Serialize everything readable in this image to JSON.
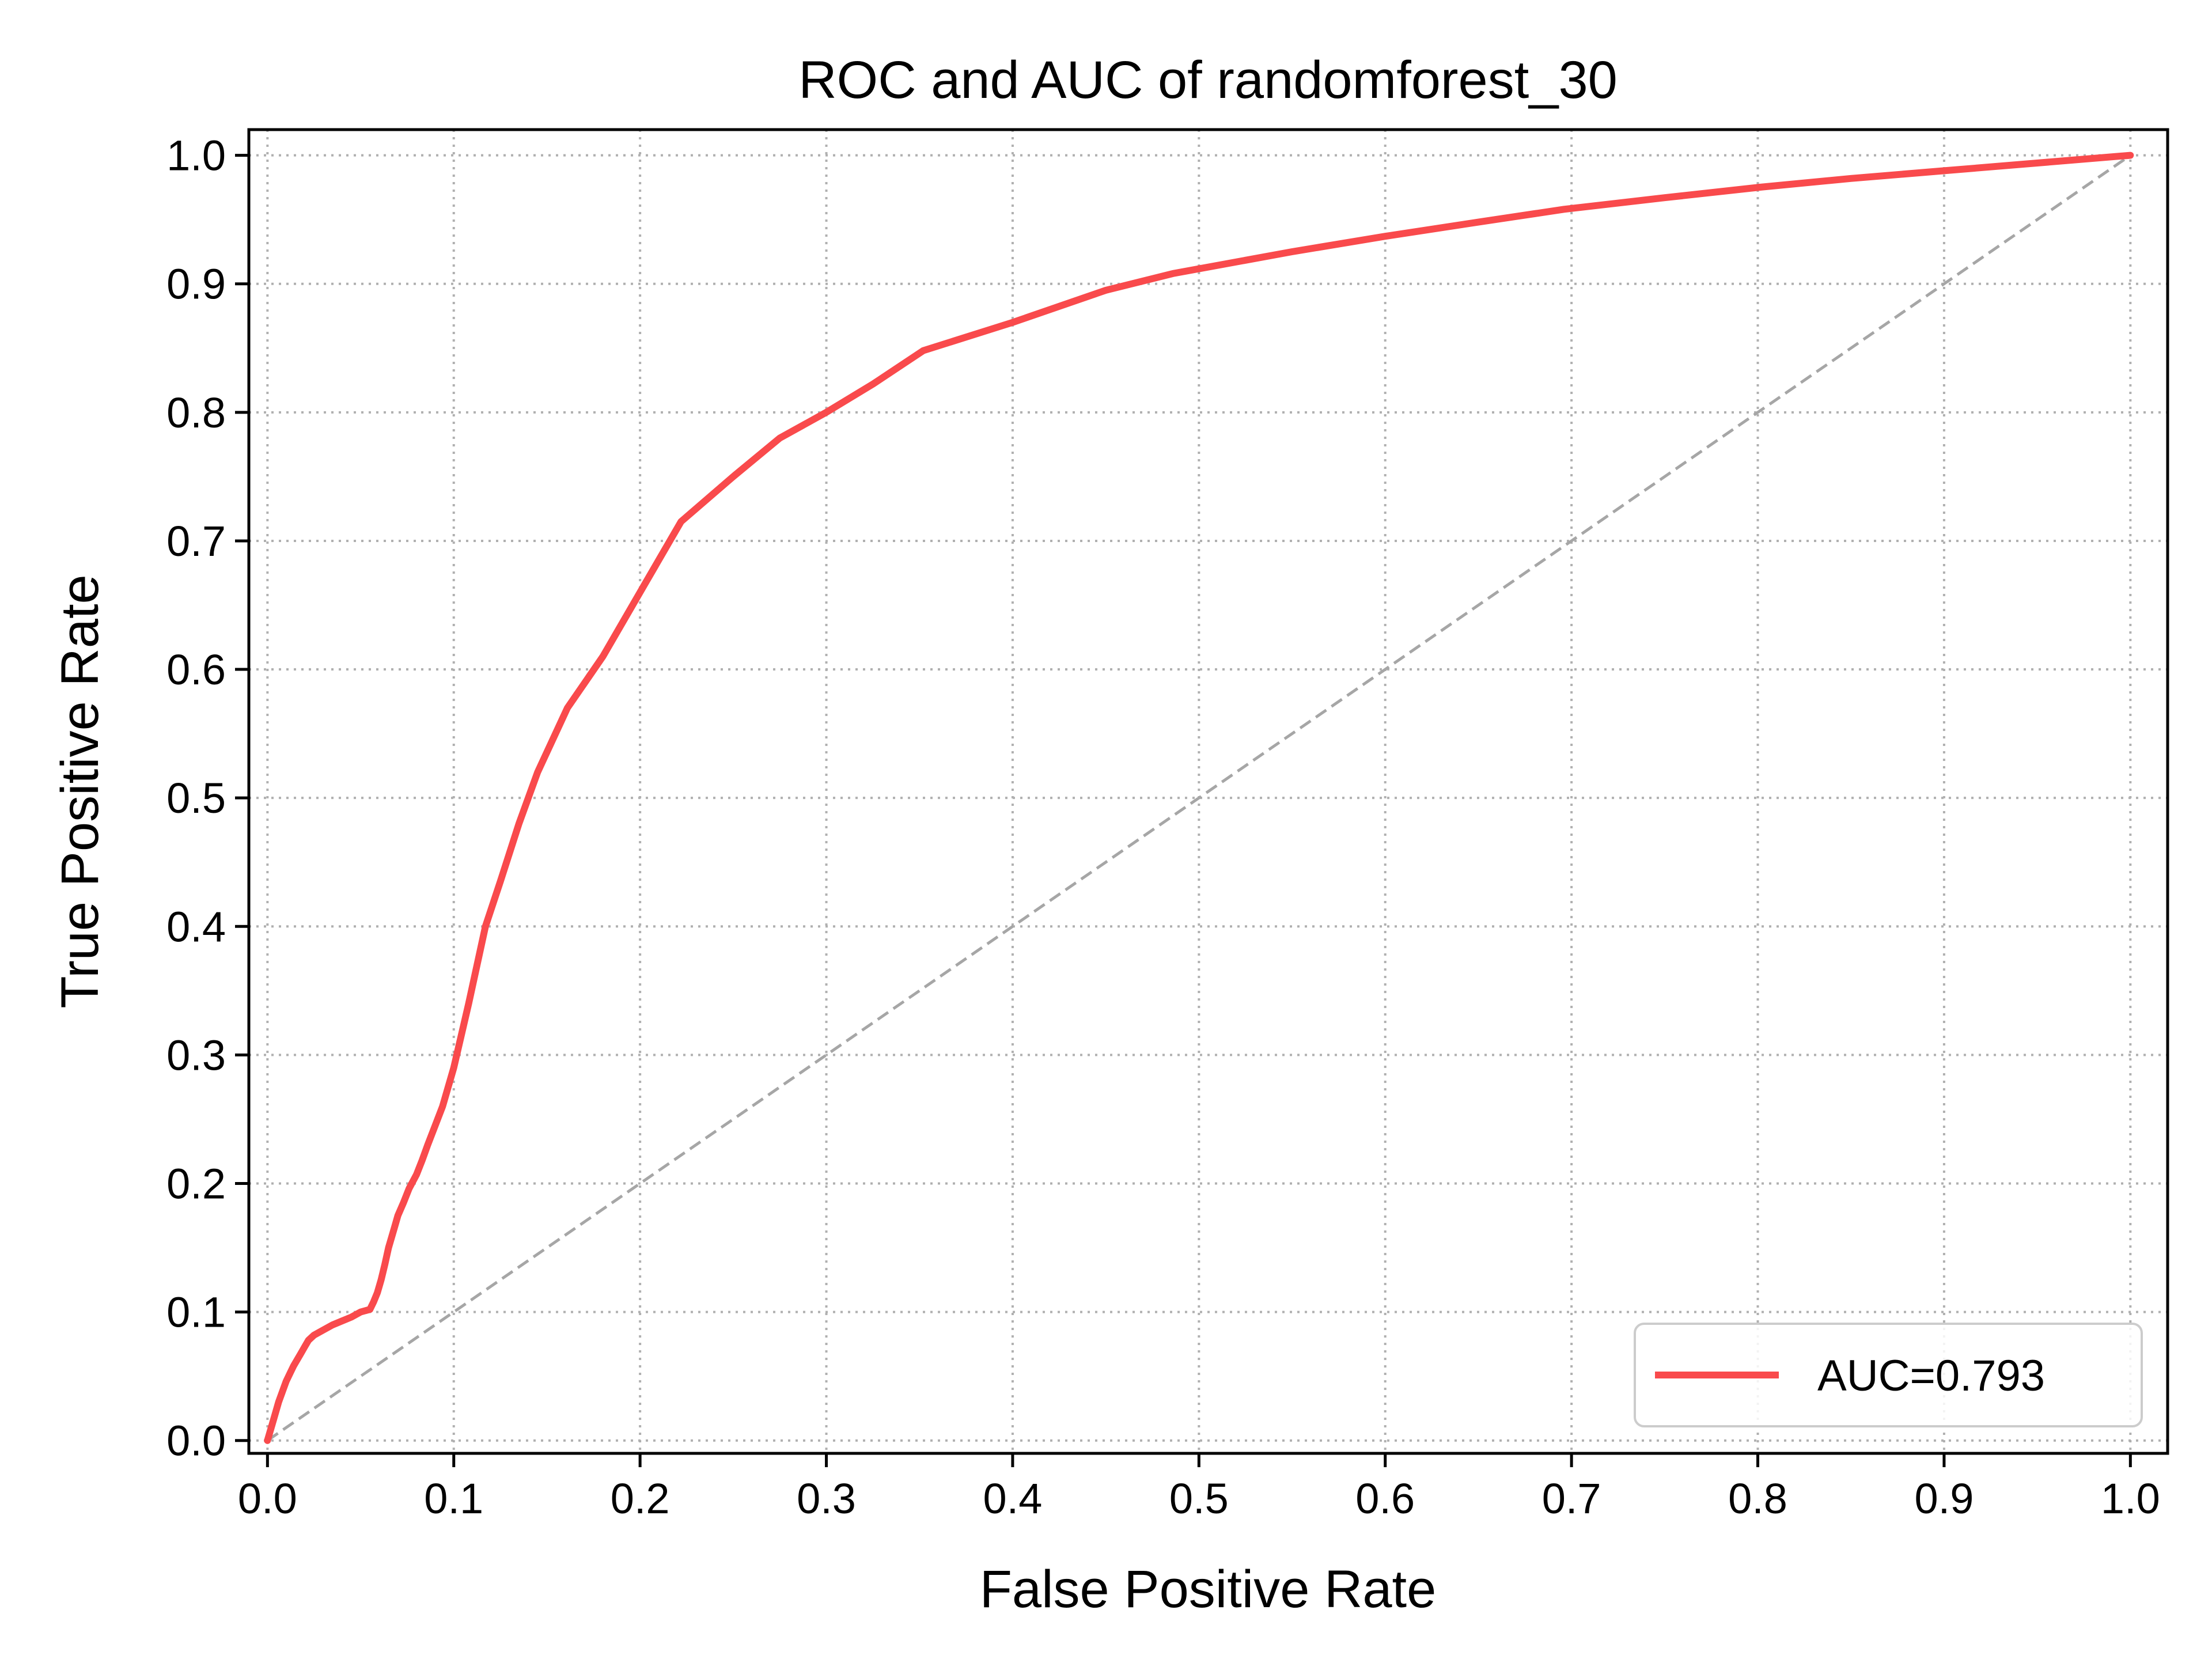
{
  "chart_data": {
    "type": "line",
    "title": "ROC and AUC of randomforest_30",
    "xlabel": "False Positive Rate",
    "ylabel": "True Positive Rate",
    "xlim": [
      -0.01,
      1.02
    ],
    "ylim": [
      -0.01,
      1.02
    ],
    "xticks": [
      "0.0",
      "0.1",
      "0.2",
      "0.3",
      "0.4",
      "0.5",
      "0.6",
      "0.7",
      "0.8",
      "0.9",
      "1.0"
    ],
    "yticks": [
      "0.0",
      "0.1",
      "0.2",
      "0.3",
      "0.4",
      "0.5",
      "0.6",
      "0.7",
      "0.8",
      "0.9",
      "1.0"
    ],
    "grid": true,
    "legend_position": "lower-right",
    "series": [
      {
        "name": "AUC=0.793",
        "color": "#f94a4c",
        "x": [
          0.0,
          0.002,
          0.004,
          0.006,
          0.008,
          0.01,
          0.012,
          0.014,
          0.016,
          0.018,
          0.02,
          0.022,
          0.025,
          0.03,
          0.035,
          0.04,
          0.045,
          0.05,
          0.055,
          0.057,
          0.059,
          0.061,
          0.063,
          0.065,
          0.068,
          0.07,
          0.073,
          0.076,
          0.08,
          0.083,
          0.086,
          0.09,
          0.094,
          0.1,
          0.108,
          0.117,
          0.125,
          0.135,
          0.145,
          0.161,
          0.18,
          0.2,
          0.222,
          0.25,
          0.275,
          0.3,
          0.325,
          0.352,
          0.4,
          0.45,
          0.486,
          0.55,
          0.6,
          0.65,
          0.696,
          0.75,
          0.8,
          0.85,
          0.9,
          0.95,
          1.0
        ],
        "y": [
          0.0,
          0.01,
          0.02,
          0.03,
          0.038,
          0.046,
          0.052,
          0.058,
          0.063,
          0.068,
          0.073,
          0.078,
          0.082,
          0.086,
          0.09,
          0.093,
          0.096,
          0.1,
          0.102,
          0.108,
          0.115,
          0.125,
          0.137,
          0.15,
          0.165,
          0.175,
          0.185,
          0.196,
          0.207,
          0.218,
          0.23,
          0.245,
          0.26,
          0.29,
          0.34,
          0.4,
          0.435,
          0.48,
          0.52,
          0.57,
          0.61,
          0.66,
          0.715,
          0.75,
          0.78,
          0.8,
          0.822,
          0.848,
          0.87,
          0.895,
          0.908,
          0.925,
          0.937,
          0.948,
          0.958,
          0.967,
          0.975,
          0.982,
          0.988,
          0.994,
          1.0
        ]
      }
    ],
    "reference_line": {
      "x": [
        0,
        1
      ],
      "y": [
        0,
        1
      ],
      "style": "dashed",
      "color": "#a6a6a6"
    }
  }
}
